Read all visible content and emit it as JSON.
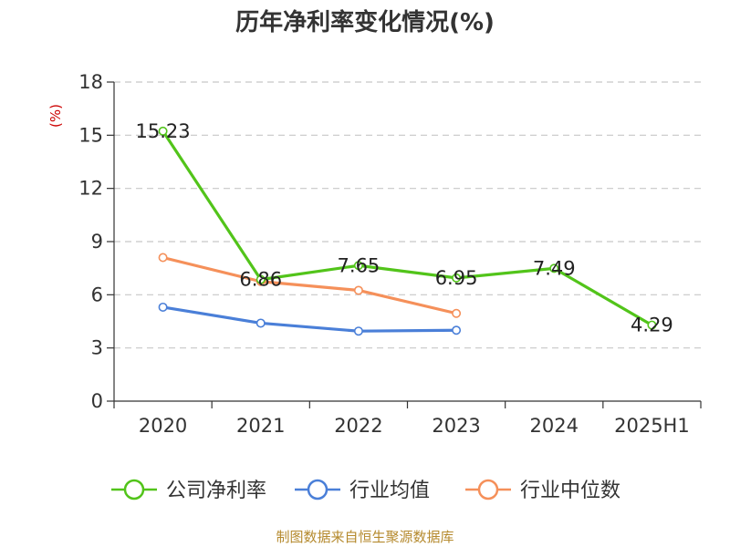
{
  "chart_data": {
    "type": "line",
    "title": "历年净利率变化情况(%)",
    "ylabel": "(%)",
    "categories": [
      "2020",
      "2021",
      "2022",
      "2023",
      "2024",
      "2025H1"
    ],
    "ylim": [
      0,
      18
    ],
    "yticks": [
      0,
      3,
      6,
      9,
      12,
      15,
      18
    ],
    "grid": true,
    "legend_position": "bottom",
    "series": [
      {
        "name": "公司净利率",
        "color": "#52c41a",
        "values": [
          15.23,
          6.86,
          7.65,
          6.95,
          7.49,
          4.29
        ],
        "labels": [
          "15.23",
          "6.86",
          "7.65",
          "6.95",
          "7.49",
          "4.29"
        ]
      },
      {
        "name": "行业均值",
        "color": "#4a7fd8",
        "values": [
          5.3,
          4.4,
          3.95,
          4.0,
          null,
          null
        ]
      },
      {
        "name": "行业中位数",
        "color": "#f5905a",
        "values": [
          8.1,
          6.75,
          6.25,
          4.95,
          null,
          null
        ]
      }
    ],
    "source": "制图数据来自恒生聚源数据库"
  }
}
